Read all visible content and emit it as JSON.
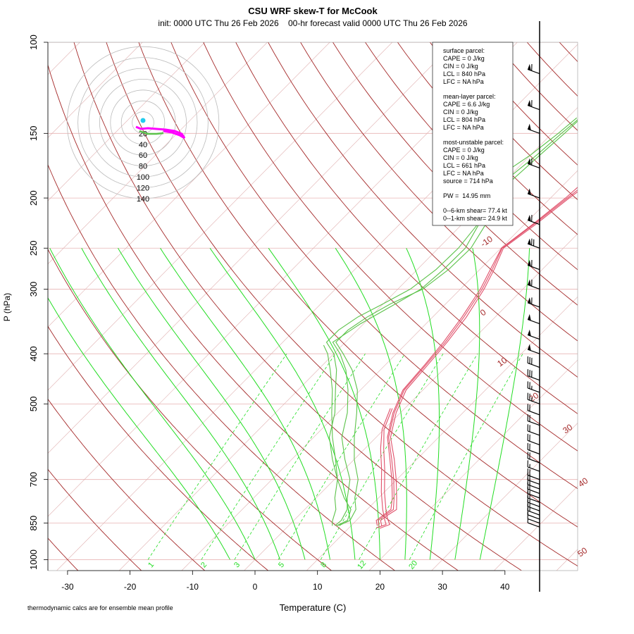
{
  "chart_data": {
    "type": "skew-t",
    "title": "CSU WRF skew-T for McCook",
    "subtitle": "init: 0000 UTC Thu 26 Feb 2026    00-hr forecast valid 0000 UTC Thu 26 Feb 2026",
    "xlabel": "Temperature (C)",
    "ylabel": "P (hPa)",
    "footnote": "thermodynamic calcs are for ensemble mean profile",
    "x_ticks": [
      -30,
      -20,
      -10,
      0,
      10,
      20,
      30,
      40
    ],
    "p_ticks": [
      100,
      150,
      200,
      250,
      300,
      400,
      500,
      700,
      850,
      1000
    ],
    "xlim": [
      -33,
      52
    ],
    "plim": [
      100,
      1050
    ],
    "dry_adiabat_labels": [
      "-10",
      "0",
      "10",
      "20",
      "30",
      "40",
      "50"
    ],
    "mixing_ratio_labels": [
      "1",
      "2",
      "3",
      "5",
      "8",
      "12",
      "20"
    ],
    "hodograph_ring_labels": [
      "20",
      "40",
      "60",
      "80",
      "100",
      "120",
      "140"
    ],
    "colors": {
      "temperature": "#e0506a",
      "dewpoint": "#5cc24a",
      "isobar": "#e8b4b4",
      "isotherm": "#e0b0b0",
      "dry_adiabat": "#a52a2a",
      "moist_adiabat": "#22dd22",
      "mixing_ratio": "#22dd22",
      "hodograph": "#ff00ff"
    },
    "parcel_box": {
      "surface_header": "surface parcel:",
      "surface_cape": "CAPE = 0 J/kg",
      "surface_cin": "CIN = 0 J/kg",
      "surface_lcl": "LCL = 840 hPa",
      "surface_lfc": "LFC = NA hPa",
      "ml_header": "mean-layer parcel:",
      "ml_cape": "CAPE = 6.6 J/kg",
      "ml_cin": "CIN = 0 J/kg",
      "ml_lcl": "LCL = 804 hPa",
      "ml_lfc": "LFC = NA hPa",
      "mu_header": "most-unstable parcel:",
      "mu_cape": "CAPE = 0 J/kg",
      "mu_cin": "CIN = 0 J/kg",
      "mu_lcl": "LCL = 661 hPa",
      "mu_lfc": "LFC = NA hPa",
      "mu_source": "source = 714 hPa",
      "pw": "PW =  14.95 mm",
      "shear_06": "0--6-km shear= 77.4 kt",
      "shear_01": "0--1-km shear= 24.9 kt"
    },
    "temperature_profiles": [
      {
        "points": [
          [
            14.5,
            860
          ],
          [
            13.5,
            840
          ],
          [
            13.8,
            820
          ],
          [
            14.2,
            800
          ],
          [
            12.5,
            760
          ],
          [
            9.5,
            700
          ],
          [
            6,
            640
          ],
          [
            2,
            580
          ],
          [
            -1,
            520
          ],
          [
            -3,
            470
          ],
          [
            -3.5,
            420
          ],
          [
            -4,
            380
          ],
          [
            -5,
            340
          ],
          [
            -6.5,
            300
          ],
          [
            -8,
            275
          ],
          [
            -9.8,
            250
          ],
          [
            -8.5,
            225
          ],
          [
            -7.3,
            200
          ],
          [
            -6.5,
            185
          ],
          [
            -4,
            165
          ],
          [
            -1,
            150
          ],
          [
            2,
            135
          ],
          [
            5,
            120
          ],
          [
            7,
            112
          ],
          [
            8,
            110
          ]
        ]
      },
      {
        "points": [
          [
            14.2,
            860
          ],
          [
            13.2,
            840
          ],
          [
            13.5,
            820
          ],
          [
            13.8,
            800
          ],
          [
            12.2,
            760
          ],
          [
            9.2,
            700
          ],
          [
            5.7,
            640
          ],
          [
            1.8,
            580
          ],
          [
            -1.2,
            520
          ],
          [
            -3.2,
            470
          ],
          [
            -3.7,
            420
          ],
          [
            -4.3,
            380
          ],
          [
            -5.3,
            340
          ],
          [
            -6.8,
            300
          ],
          [
            -8.3,
            275
          ],
          [
            -9.9,
            250
          ],
          [
            -8.7,
            225
          ],
          [
            -7.6,
            200
          ],
          [
            -7.2,
            185
          ],
          [
            -5,
            165
          ],
          [
            -2,
            150
          ],
          [
            1,
            135
          ],
          [
            4.4,
            120
          ],
          [
            6.5,
            112
          ],
          [
            7.5,
            110
          ]
        ]
      },
      {
        "points": [
          [
            14.9,
            860
          ],
          [
            13.9,
            840
          ],
          [
            14.2,
            820
          ],
          [
            14.7,
            800
          ],
          [
            12.9,
            760
          ],
          [
            9.9,
            700
          ],
          [
            6.4,
            640
          ],
          [
            2.3,
            580
          ],
          [
            -0.7,
            520
          ],
          [
            -2.7,
            470
          ],
          [
            -3.2,
            420
          ],
          [
            -3.7,
            380
          ],
          [
            -4.6,
            340
          ],
          [
            -6.2,
            300
          ],
          [
            -7.7,
            275
          ],
          [
            -9.6,
            250
          ],
          [
            -8.2,
            225
          ],
          [
            -7,
            200
          ],
          [
            -6,
            185
          ],
          [
            -3,
            165
          ],
          [
            0,
            150
          ],
          [
            3,
            135
          ],
          [
            6,
            120
          ],
          [
            8,
            112
          ],
          [
            8.8,
            110
          ]
        ]
      },
      {
        "points": [
          [
            15,
            870
          ],
          [
            16,
            855
          ],
          [
            14.8,
            835
          ],
          [
            13,
            800
          ],
          [
            10,
            740
          ],
          [
            6.5,
            670
          ],
          [
            3,
            610
          ],
          [
            0,
            560
          ],
          [
            -2,
            510
          ]
        ]
      },
      {
        "points": [
          [
            14.4,
            868
          ],
          [
            15.4,
            855
          ],
          [
            14.3,
            835
          ],
          [
            12.5,
            800
          ],
          [
            9.5,
            740
          ],
          [
            6,
            670
          ],
          [
            2.5,
            610
          ],
          [
            -0.3,
            560
          ],
          [
            -2.3,
            510
          ]
        ]
      }
    ],
    "dewpoint_profiles": [
      {
        "points": [
          [
            7.4,
            860
          ],
          [
            7.6,
            840
          ],
          [
            6.8,
            800
          ],
          [
            5,
            760
          ],
          [
            2.5,
            700
          ],
          [
            -1.5,
            640
          ],
          [
            -5.5,
            580
          ],
          [
            -8.5,
            520
          ],
          [
            -12,
            470
          ],
          [
            -15.5,
            430
          ],
          [
            -19,
            400
          ],
          [
            -22,
            380
          ],
          [
            -20.5,
            350
          ],
          [
            -18,
            320
          ],
          [
            -16.3,
            300
          ],
          [
            -15.8,
            275
          ],
          [
            -15.7,
            250
          ],
          [
            -17.3,
            225
          ],
          [
            -19.8,
            200
          ],
          [
            -20,
            185
          ],
          [
            -19,
            165
          ],
          [
            -18.5,
            150
          ],
          [
            -18,
            140
          ]
        ]
      },
      {
        "points": [
          [
            7.7,
            860
          ],
          [
            8.6,
            840
          ],
          [
            7.4,
            800
          ],
          [
            4.5,
            760
          ],
          [
            0.5,
            700
          ],
          [
            -3.5,
            640
          ],
          [
            -7.5,
            580
          ],
          [
            -10.5,
            520
          ],
          [
            -14,
            470
          ],
          [
            -17,
            430
          ],
          [
            -20,
            400
          ],
          [
            -23,
            380
          ],
          [
            -23,
            360
          ],
          [
            -22,
            340
          ],
          [
            -20,
            320
          ],
          [
            -18,
            300
          ],
          [
            -17,
            275
          ],
          [
            -16.8,
            250
          ],
          [
            -17.5,
            225
          ],
          [
            -21,
            200
          ],
          [
            -22,
            185
          ],
          [
            -20,
            165
          ],
          [
            -19,
            150
          ],
          [
            -18.5,
            140
          ]
        ]
      },
      {
        "points": [
          [
            8,
            860
          ],
          [
            9,
            840
          ],
          [
            8.2,
            800
          ],
          [
            6.2,
            760
          ],
          [
            3.8,
            700
          ],
          [
            0,
            640
          ],
          [
            -3.5,
            580
          ],
          [
            -7,
            520
          ],
          [
            -10.5,
            470
          ],
          [
            -14.5,
            430
          ],
          [
            -18.5,
            400
          ],
          [
            -21.5,
            380
          ],
          [
            -21.5,
            360
          ],
          [
            -20.5,
            340
          ],
          [
            -18.8,
            320
          ],
          [
            -16,
            300
          ],
          [
            -15,
            275
          ],
          [
            -14.8,
            250
          ],
          [
            -16.2,
            225
          ],
          [
            -18.5,
            200
          ],
          [
            -19,
            185
          ],
          [
            -18.5,
            165
          ],
          [
            -18,
            150
          ],
          [
            -17.8,
            140
          ]
        ]
      },
      {
        "points": [
          [
            7,
            860
          ],
          [
            6.2,
            840
          ],
          [
            5,
            800
          ],
          [
            3,
            760
          ],
          [
            0.5,
            700
          ],
          [
            -3,
            640
          ],
          [
            -7,
            580
          ],
          [
            -11,
            520
          ],
          [
            -14.5,
            470
          ],
          [
            -18,
            430
          ],
          [
            -21,
            400
          ],
          [
            -23,
            385
          ]
        ]
      }
    ],
    "hodograph_points": [
      [
        -18,
        150
      ],
      [
        -17,
        150
      ],
      [
        -16,
        150
      ],
      [
        -15,
        150
      ],
      [
        -14,
        150
      ],
      [
        -13,
        150
      ],
      [
        -12,
        150
      ],
      [
        -11,
        150
      ],
      [
        -10,
        150
      ]
    ],
    "wind_barbs": [
      {
        "p": 115,
        "flags": 1,
        "full": 1,
        "half": 0
      },
      {
        "p": 135,
        "flags": 1,
        "full": 1,
        "half": 0
      },
      {
        "p": 150,
        "flags": 1,
        "full": 0,
        "half": 0
      },
      {
        "p": 175,
        "flags": 1,
        "full": 1,
        "half": 0
      },
      {
        "p": 200,
        "flags": 1,
        "full": 0,
        "half": 0
      },
      {
        "p": 225,
        "flags": 1,
        "full": 1,
        "half": 0
      },
      {
        "p": 250,
        "flags": 1,
        "full": 2,
        "half": 0
      },
      {
        "p": 275,
        "flags": 1,
        "full": 1,
        "half": 0
      },
      {
        "p": 300,
        "flags": 1,
        "full": 1,
        "half": 0
      },
      {
        "p": 325,
        "flags": 1,
        "full": 1,
        "half": 0
      },
      {
        "p": 350,
        "flags": 1,
        "full": 0,
        "half": 0
      },
      {
        "p": 375,
        "flags": 1,
        "full": 0,
        "half": 0
      },
      {
        "p": 400,
        "flags": 1,
        "full": 0,
        "half": 0
      },
      {
        "p": 425,
        "flags": 0,
        "full": 3,
        "half": 0
      },
      {
        "p": 450,
        "flags": 0,
        "full": 3,
        "half": 0
      },
      {
        "p": 475,
        "flags": 0,
        "full": 2,
        "half": 1
      },
      {
        "p": 500,
        "flags": 0,
        "full": 2,
        "half": 1
      },
      {
        "p": 525,
        "flags": 0,
        "full": 2,
        "half": 0
      },
      {
        "p": 550,
        "flags": 0,
        "full": 2,
        "half": 0
      },
      {
        "p": 575,
        "flags": 0,
        "full": 2,
        "half": 0
      },
      {
        "p": 600,
        "flags": 0,
        "full": 2,
        "half": 0
      },
      {
        "p": 625,
        "flags": 0,
        "full": 2,
        "half": 0
      },
      {
        "p": 650,
        "flags": 0,
        "full": 2,
        "half": 0
      },
      {
        "p": 675,
        "flags": 0,
        "full": 1,
        "half": 1
      },
      {
        "p": 700,
        "flags": 0,
        "full": 2,
        "half": 0
      },
      {
        "p": 715,
        "flags": 0,
        "full": 2,
        "half": 0
      },
      {
        "p": 730,
        "flags": 0,
        "full": 2,
        "half": 0
      },
      {
        "p": 745,
        "flags": 0,
        "full": 2,
        "half": 0
      },
      {
        "p": 760,
        "flags": 0,
        "full": 1,
        "half": 1
      },
      {
        "p": 775,
        "flags": 0,
        "full": 1,
        "half": 1
      },
      {
        "p": 790,
        "flags": 0,
        "full": 1,
        "half": 1
      },
      {
        "p": 805,
        "flags": 0,
        "full": 1,
        "half": 1
      },
      {
        "p": 820,
        "flags": 0,
        "full": 1,
        "half": 1
      },
      {
        "p": 835,
        "flags": 0,
        "full": 1,
        "half": 0
      },
      {
        "p": 850,
        "flags": 0,
        "full": 1,
        "half": 0
      },
      {
        "p": 865,
        "flags": 0,
        "full": 0,
        "half": 1
      }
    ]
  }
}
